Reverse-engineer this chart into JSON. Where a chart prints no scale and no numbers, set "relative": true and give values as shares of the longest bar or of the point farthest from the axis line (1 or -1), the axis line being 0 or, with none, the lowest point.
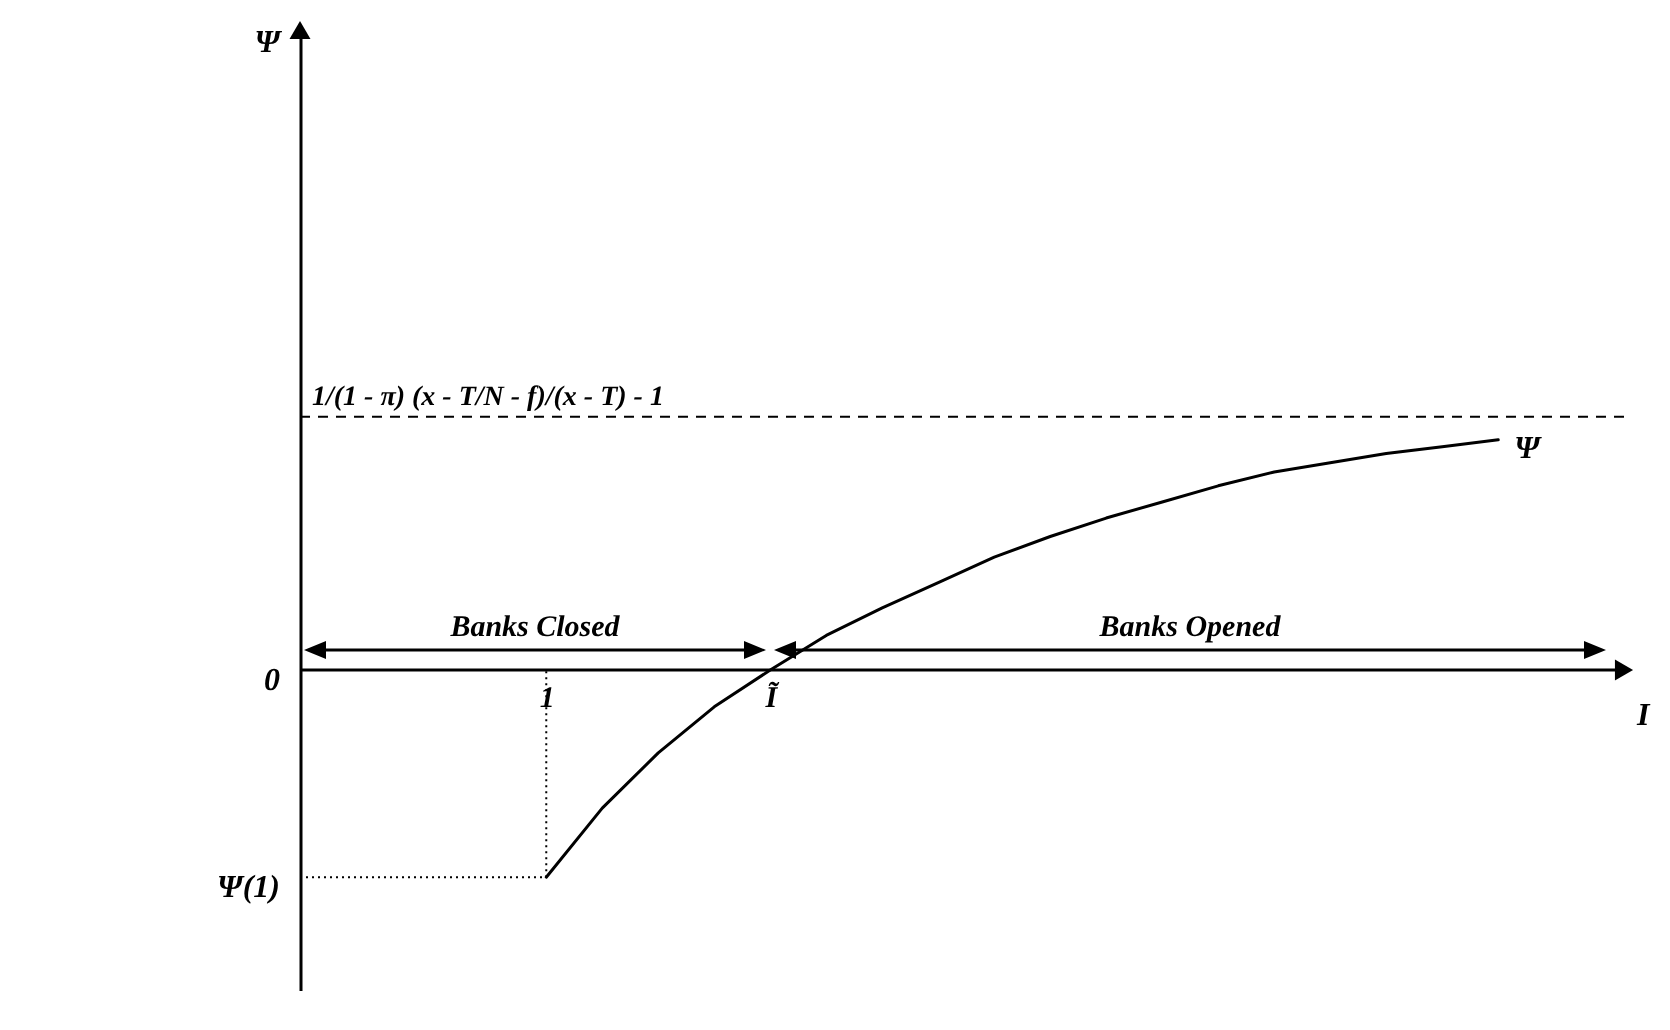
{
  "chart_data": {
    "type": "line",
    "relative": true,
    "xlabel": "I",
    "categories": [
      "1",
      null,
      null,
      null,
      "Ĩ",
      null,
      null,
      null,
      null,
      null,
      null,
      null,
      null,
      null,
      null,
      null,
      null,
      null
    ],
    "series": [
      {
        "name": "Ψ",
        "color": "#000000",
        "values": [
          -0.9,
          -0.6,
          -0.36,
          -0.16,
          0,
          0.15,
          0.27,
          0.38,
          0.49,
          0.58,
          0.66,
          0.73,
          0.8,
          0.86,
          0.9,
          0.94,
          0.97,
          1
        ]
      }
    ],
    "ref_lines": [
      {
        "axis": "y",
        "value": 1.1,
        "label": "1/(1 - π) (x - T/N - f)/(x - T) - 1",
        "line_style": "dashed",
        "color": "#000000"
      }
    ],
    "annotations": [
      "0",
      "Ψ(1)",
      "Banks Closed",
      "Banks Opened",
      "Ψ"
    ]
  }
}
